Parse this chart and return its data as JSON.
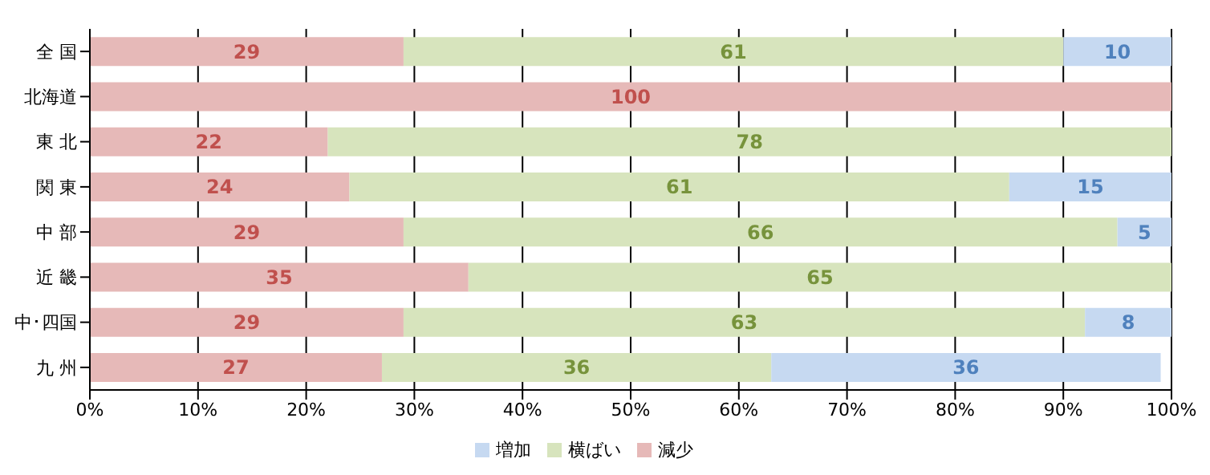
{
  "chart_data": {
    "type": "bar",
    "orientation": "horizontal",
    "stacked": true,
    "categories": [
      "全 国",
      "北海道",
      "東 北",
      "関 東",
      "中 部",
      "近 畿",
      "中･四国",
      "九 州"
    ],
    "series": [
      {
        "name": "減少",
        "color": "#e6b9b8",
        "values": [
          29,
          100,
          22,
          24,
          29,
          35,
          29,
          27
        ],
        "value_labels": [
          "29",
          "100",
          "22",
          "24",
          "29",
          "35",
          "29",
          "27"
        ]
      },
      {
        "name": "横ばい",
        "color": "#d7e4bd",
        "values": [
          61,
          0,
          78,
          61,
          66,
          65,
          63,
          36
        ],
        "value_labels": [
          "61",
          null,
          "78",
          "61",
          "66",
          "65",
          "63",
          "36"
        ]
      },
      {
        "name": "増加",
        "color": "#c6d9f1",
        "values": [
          10,
          0,
          0,
          15,
          5,
          0,
          8,
          36
        ],
        "value_labels": [
          "10",
          null,
          null,
          "15",
          "5",
          null,
          "8",
          "36"
        ]
      }
    ],
    "xlim": [
      0,
      100
    ],
    "xticks": [
      {
        "value": 0,
        "label": "0%"
      },
      {
        "value": 10,
        "label": "10%"
      },
      {
        "value": 20,
        "label": "20%"
      },
      {
        "value": 30,
        "label": "30%"
      },
      {
        "value": 40,
        "label": "40%"
      },
      {
        "value": 50,
        "label": "50%"
      },
      {
        "value": 60,
        "label": "60%"
      },
      {
        "value": 70,
        "label": "70%"
      },
      {
        "value": 80,
        "label": "80%"
      },
      {
        "value": 90,
        "label": "90%"
      },
      {
        "value": 100,
        "label": "100%"
      }
    ],
    "grid": "x",
    "legend": "bottom"
  }
}
